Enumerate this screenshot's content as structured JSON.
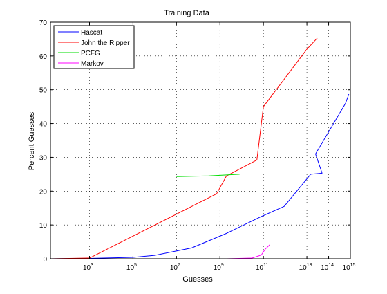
{
  "chart_data": {
    "type": "line",
    "title": "Training Data",
    "xlabel": "Guesses",
    "ylabel": "Percent Guesses",
    "x_scale": "log",
    "xlim": [
      16,
      1000000000000000
    ],
    "ylim": [
      0,
      70
    ],
    "x_ticks": [
      {
        "value": 1000,
        "base": "10",
        "exp": "3"
      },
      {
        "value": 100000,
        "base": "10",
        "exp": "5"
      },
      {
        "value": 10000000,
        "base": "10",
        "exp": "7"
      },
      {
        "value": 1000000000,
        "base": "10",
        "exp": "9"
      },
      {
        "value": 100000000000,
        "base": "10",
        "exp": "11"
      },
      {
        "value": 10000000000000,
        "base": "10",
        "exp": "13"
      },
      {
        "value": 100000000000000,
        "base": "10",
        "exp": "14"
      },
      {
        "value": 1000000000000000,
        "base": "10",
        "exp": "15"
      }
    ],
    "y_ticks": [
      "0",
      "10",
      "20",
      "30",
      "40",
      "50",
      "60",
      "70"
    ],
    "grid": true,
    "legend_position": "top-left",
    "series": [
      {
        "name": "Hascat",
        "color": "#0000ff",
        "points": [
          [
            16,
            0
          ],
          [
            1000,
            0.1
          ],
          [
            100000,
            0.4
          ],
          [
            1000000,
            1
          ],
          [
            50000000,
            3.2
          ],
          [
            2000000000,
            7.5
          ],
          [
            80000000000,
            12.5
          ],
          [
            900000000000,
            15.5
          ],
          [
            15000000000000,
            25
          ],
          [
            50000000000000,
            25.3
          ],
          [
            25000000000000,
            31
          ],
          [
            600000000000000,
            46
          ],
          [
            850000000000000,
            48.7
          ]
        ]
      },
      {
        "name": "John the Ripper",
        "color": "#ff0000",
        "points": [
          [
            16,
            0
          ],
          [
            1000,
            0.2
          ],
          [
            700000000,
            19.2
          ],
          [
            2000000000,
            24.5
          ],
          [
            50000000000,
            29.2
          ],
          [
            100000000000,
            45
          ],
          [
            10000000000000,
            62
          ],
          [
            30000000000000,
            65.3
          ]
        ]
      },
      {
        "name": "PCFG",
        "color": "#00dd00",
        "points": [
          [
            10000000,
            24.3
          ],
          [
            300000000,
            24.5
          ],
          [
            2000000000,
            24.8
          ],
          [
            8000000000,
            25
          ]
        ]
      },
      {
        "name": "Markov",
        "color": "#ff00ff",
        "points": [
          [
            2000000000,
            0
          ],
          [
            30000000000,
            0.2
          ],
          [
            80000000000,
            1.1
          ],
          [
            120000000000,
            2.8
          ],
          [
            200000000000,
            4.2
          ]
        ]
      }
    ]
  }
}
